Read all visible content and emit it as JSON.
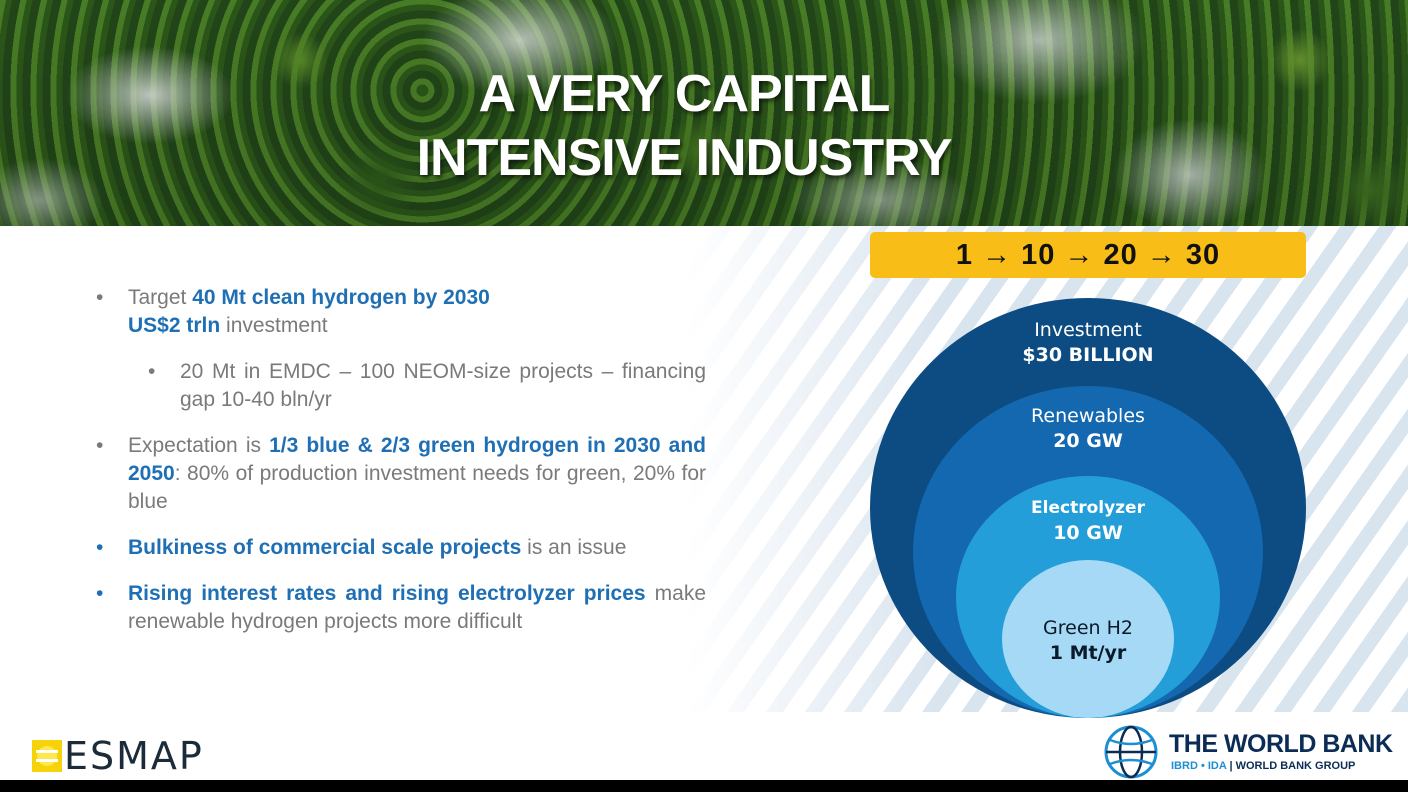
{
  "header": {
    "title_line1": "A VERY CAPITAL",
    "title_line2": "INTENSIVE INDUSTRY"
  },
  "bullets": {
    "b1": {
      "pre": "Target ",
      "bold1": "40 Mt clean hydrogen by 2030",
      "bold2": "US$2 trln",
      "post": " investment"
    },
    "b1_sub": "20 Mt in EMDC – 100 NEOM-size projects – financing gap 10-40 bln/yr",
    "b2": {
      "pre": "Expectation is ",
      "bold": "1/3 blue & 2/3 green hydrogen in 2030 and 2050",
      "post": ": 80% of production investment needs for green, 20% for blue"
    },
    "b3": {
      "bold": "Bulkiness of commercial scale projects",
      "post": " is an issue"
    },
    "b4": {
      "bold": "Rising interest rates and rising electrolyzer prices",
      "post": " make renewable hydrogen projects more difficult"
    }
  },
  "diagram": {
    "sequence": "1 → 10 → 20 → 30",
    "circles": [
      {
        "label": "Investment",
        "value": "$30 BILLION",
        "color": "#0d4c82"
      },
      {
        "label": "Renewables",
        "value": "20 GW",
        "color": "#1468b0"
      },
      {
        "label": "Electrolyzer",
        "value": "10 GW",
        "color": "#239ed8"
      },
      {
        "label": "Green H2",
        "value": "1 Mt/yr",
        "color": "#a6d9f5"
      }
    ]
  },
  "footer": {
    "esmap": "ESMAP",
    "worldbank_name": "THE WORLD BANK",
    "worldbank_ibrd": "IBRD • IDA",
    "worldbank_group": "WORLD BANK GROUP"
  }
}
